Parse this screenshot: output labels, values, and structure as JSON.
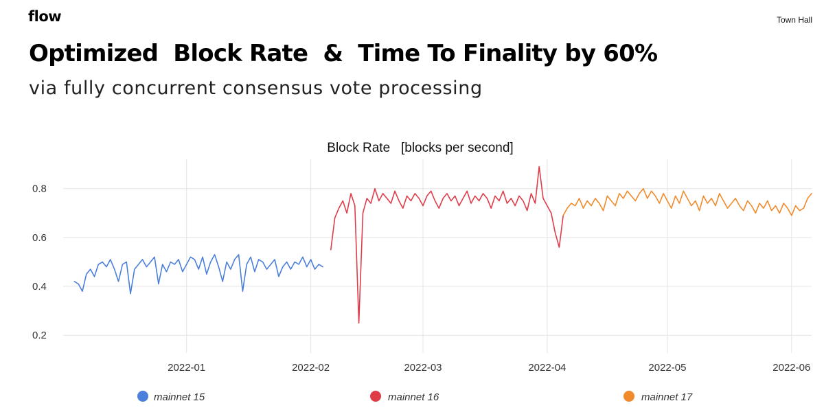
{
  "header": {
    "brand": "flow",
    "event": "Town Hall",
    "title": "Optimized  Block Rate  &  Time To Finality by 60%",
    "subtitle": "via fully concurrent consensus vote processing"
  },
  "colors": {
    "mainnet15": "#4a7fdb",
    "mainnet16": "#df3c4a",
    "mainnet17": "#f08a2a",
    "grid": "#e4e4e4",
    "text": "#333333"
  },
  "chart_data": {
    "type": "line",
    "title": "Block Rate   [blocks per second]",
    "xlabel": "",
    "ylabel": "",
    "ylim": [
      0.15,
      0.92
    ],
    "yticks": [
      0.2,
      0.4,
      0.6,
      0.8
    ],
    "ytick_labels": [
      "0.2",
      "0.4",
      "0.6",
      "0.8"
    ],
    "x_ticks": [
      "2022-01",
      "2022-02",
      "2022-03",
      "2022-04",
      "2022-05",
      "2022-06"
    ],
    "x_tick_day": [
      14,
      45,
      73,
      104,
      134,
      165
    ],
    "xlim_day": [
      -12,
      170
    ],
    "grid": true,
    "legend_position": "bottom",
    "series": [
      {
        "name": "mainnet 15",
        "color": "#4a7fdb",
        "x_day": [
          -14,
          -13,
          -12,
          -11,
          -10,
          -9,
          -8,
          -7,
          -6,
          -5,
          -4,
          -3,
          -2,
          -1,
          0,
          1,
          2,
          3,
          4,
          5,
          6,
          7,
          8,
          9,
          10,
          11,
          12,
          13,
          14,
          15,
          16,
          17,
          18,
          19,
          20,
          21,
          22,
          23,
          24,
          25,
          26,
          27,
          28,
          29,
          30,
          31,
          32,
          33,
          34,
          35,
          36,
          37,
          38,
          39,
          40,
          41,
          42,
          43,
          44,
          45,
          46,
          47,
          48
        ],
        "values": [
          0.42,
          0.41,
          0.38,
          0.45,
          0.47,
          0.44,
          0.49,
          0.5,
          0.48,
          0.51,
          0.47,
          0.42,
          0.49,
          0.5,
          0.37,
          0.47,
          0.49,
          0.51,
          0.48,
          0.5,
          0.52,
          0.41,
          0.49,
          0.46,
          0.5,
          0.49,
          0.51,
          0.46,
          0.49,
          0.52,
          0.51,
          0.47,
          0.52,
          0.45,
          0.5,
          0.53,
          0.48,
          0.42,
          0.5,
          0.47,
          0.51,
          0.53,
          0.38,
          0.49,
          0.52,
          0.46,
          0.51,
          0.5,
          0.47,
          0.49,
          0.51,
          0.44,
          0.48,
          0.5,
          0.47,
          0.5,
          0.49,
          0.52,
          0.48,
          0.51,
          0.47,
          0.49,
          0.48
        ]
      },
      {
        "name": "mainnet 16",
        "color": "#df3c4a",
        "x_day": [
          50,
          51,
          52,
          53,
          54,
          55,
          56,
          57,
          58,
          59,
          60,
          61,
          62,
          63,
          64,
          65,
          66,
          67,
          68,
          69,
          70,
          71,
          72,
          73,
          74,
          75,
          76,
          77,
          78,
          79,
          80,
          81,
          82,
          83,
          84,
          85,
          86,
          87,
          88,
          89,
          90,
          91,
          92,
          93,
          94,
          95,
          96,
          97,
          98,
          99,
          100,
          101,
          102,
          103,
          104,
          105,
          106,
          107,
          108
        ],
        "values": [
          0.55,
          0.68,
          0.72,
          0.75,
          0.7,
          0.78,
          0.73,
          0.25,
          0.7,
          0.76,
          0.74,
          0.8,
          0.75,
          0.78,
          0.76,
          0.74,
          0.79,
          0.75,
          0.72,
          0.77,
          0.75,
          0.78,
          0.76,
          0.73,
          0.77,
          0.79,
          0.75,
          0.72,
          0.76,
          0.78,
          0.75,
          0.77,
          0.73,
          0.76,
          0.79,
          0.74,
          0.77,
          0.75,
          0.78,
          0.76,
          0.72,
          0.77,
          0.75,
          0.79,
          0.74,
          0.76,
          0.73,
          0.77,
          0.75,
          0.71,
          0.78,
          0.74,
          0.89,
          0.76,
          0.73,
          0.7,
          0.62,
          0.56,
          0.69
        ]
      },
      {
        "name": "mainnet 17",
        "color": "#f08a2a",
        "x_day": [
          108,
          109,
          110,
          111,
          112,
          113,
          114,
          115,
          116,
          117,
          118,
          119,
          120,
          121,
          122,
          123,
          124,
          125,
          126,
          127,
          128,
          129,
          130,
          131,
          132,
          133,
          134,
          135,
          136,
          137,
          138,
          139,
          140,
          141,
          142,
          143,
          144,
          145,
          146,
          147,
          148,
          149,
          150,
          151,
          152,
          153,
          154,
          155,
          156,
          157,
          158,
          159,
          160,
          161,
          162,
          163,
          164,
          165,
          166,
          167,
          168,
          169,
          170
        ],
        "values": [
          0.69,
          0.72,
          0.74,
          0.73,
          0.76,
          0.72,
          0.75,
          0.73,
          0.76,
          0.74,
          0.71,
          0.77,
          0.75,
          0.73,
          0.78,
          0.76,
          0.79,
          0.77,
          0.75,
          0.78,
          0.8,
          0.76,
          0.79,
          0.77,
          0.74,
          0.78,
          0.75,
          0.72,
          0.77,
          0.74,
          0.79,
          0.76,
          0.73,
          0.75,
          0.71,
          0.77,
          0.74,
          0.76,
          0.73,
          0.78,
          0.75,
          0.72,
          0.74,
          0.76,
          0.73,
          0.71,
          0.75,
          0.73,
          0.7,
          0.74,
          0.72,
          0.75,
          0.71,
          0.73,
          0.7,
          0.74,
          0.72,
          0.69,
          0.73,
          0.71,
          0.72,
          0.76,
          0.78
        ]
      }
    ]
  }
}
